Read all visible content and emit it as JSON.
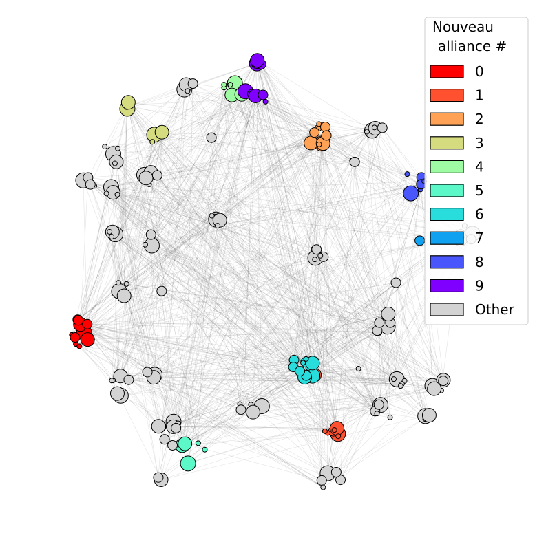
{
  "legend": {
    "title": [
      "Nouveau",
      "alliance #"
    ],
    "items": [
      {
        "label": "0",
        "color": "#ff0000"
      },
      {
        "label": "1",
        "color": "#ff5030"
      },
      {
        "label": "2",
        "color": "#ffa256"
      },
      {
        "label": "3",
        "color": "#d4dc7f"
      },
      {
        "label": "4",
        "color": "#9ffba3"
      },
      {
        "label": "5",
        "color": "#5cf8c8"
      },
      {
        "label": "6",
        "color": "#2adddd"
      },
      {
        "label": "7",
        "color": "#10a2f0"
      },
      {
        "label": "8",
        "color": "#4856fb"
      },
      {
        "label": "9",
        "color": "#8000ff"
      },
      {
        "label": "Other",
        "color": "#d3d3d3"
      }
    ]
  }
}
